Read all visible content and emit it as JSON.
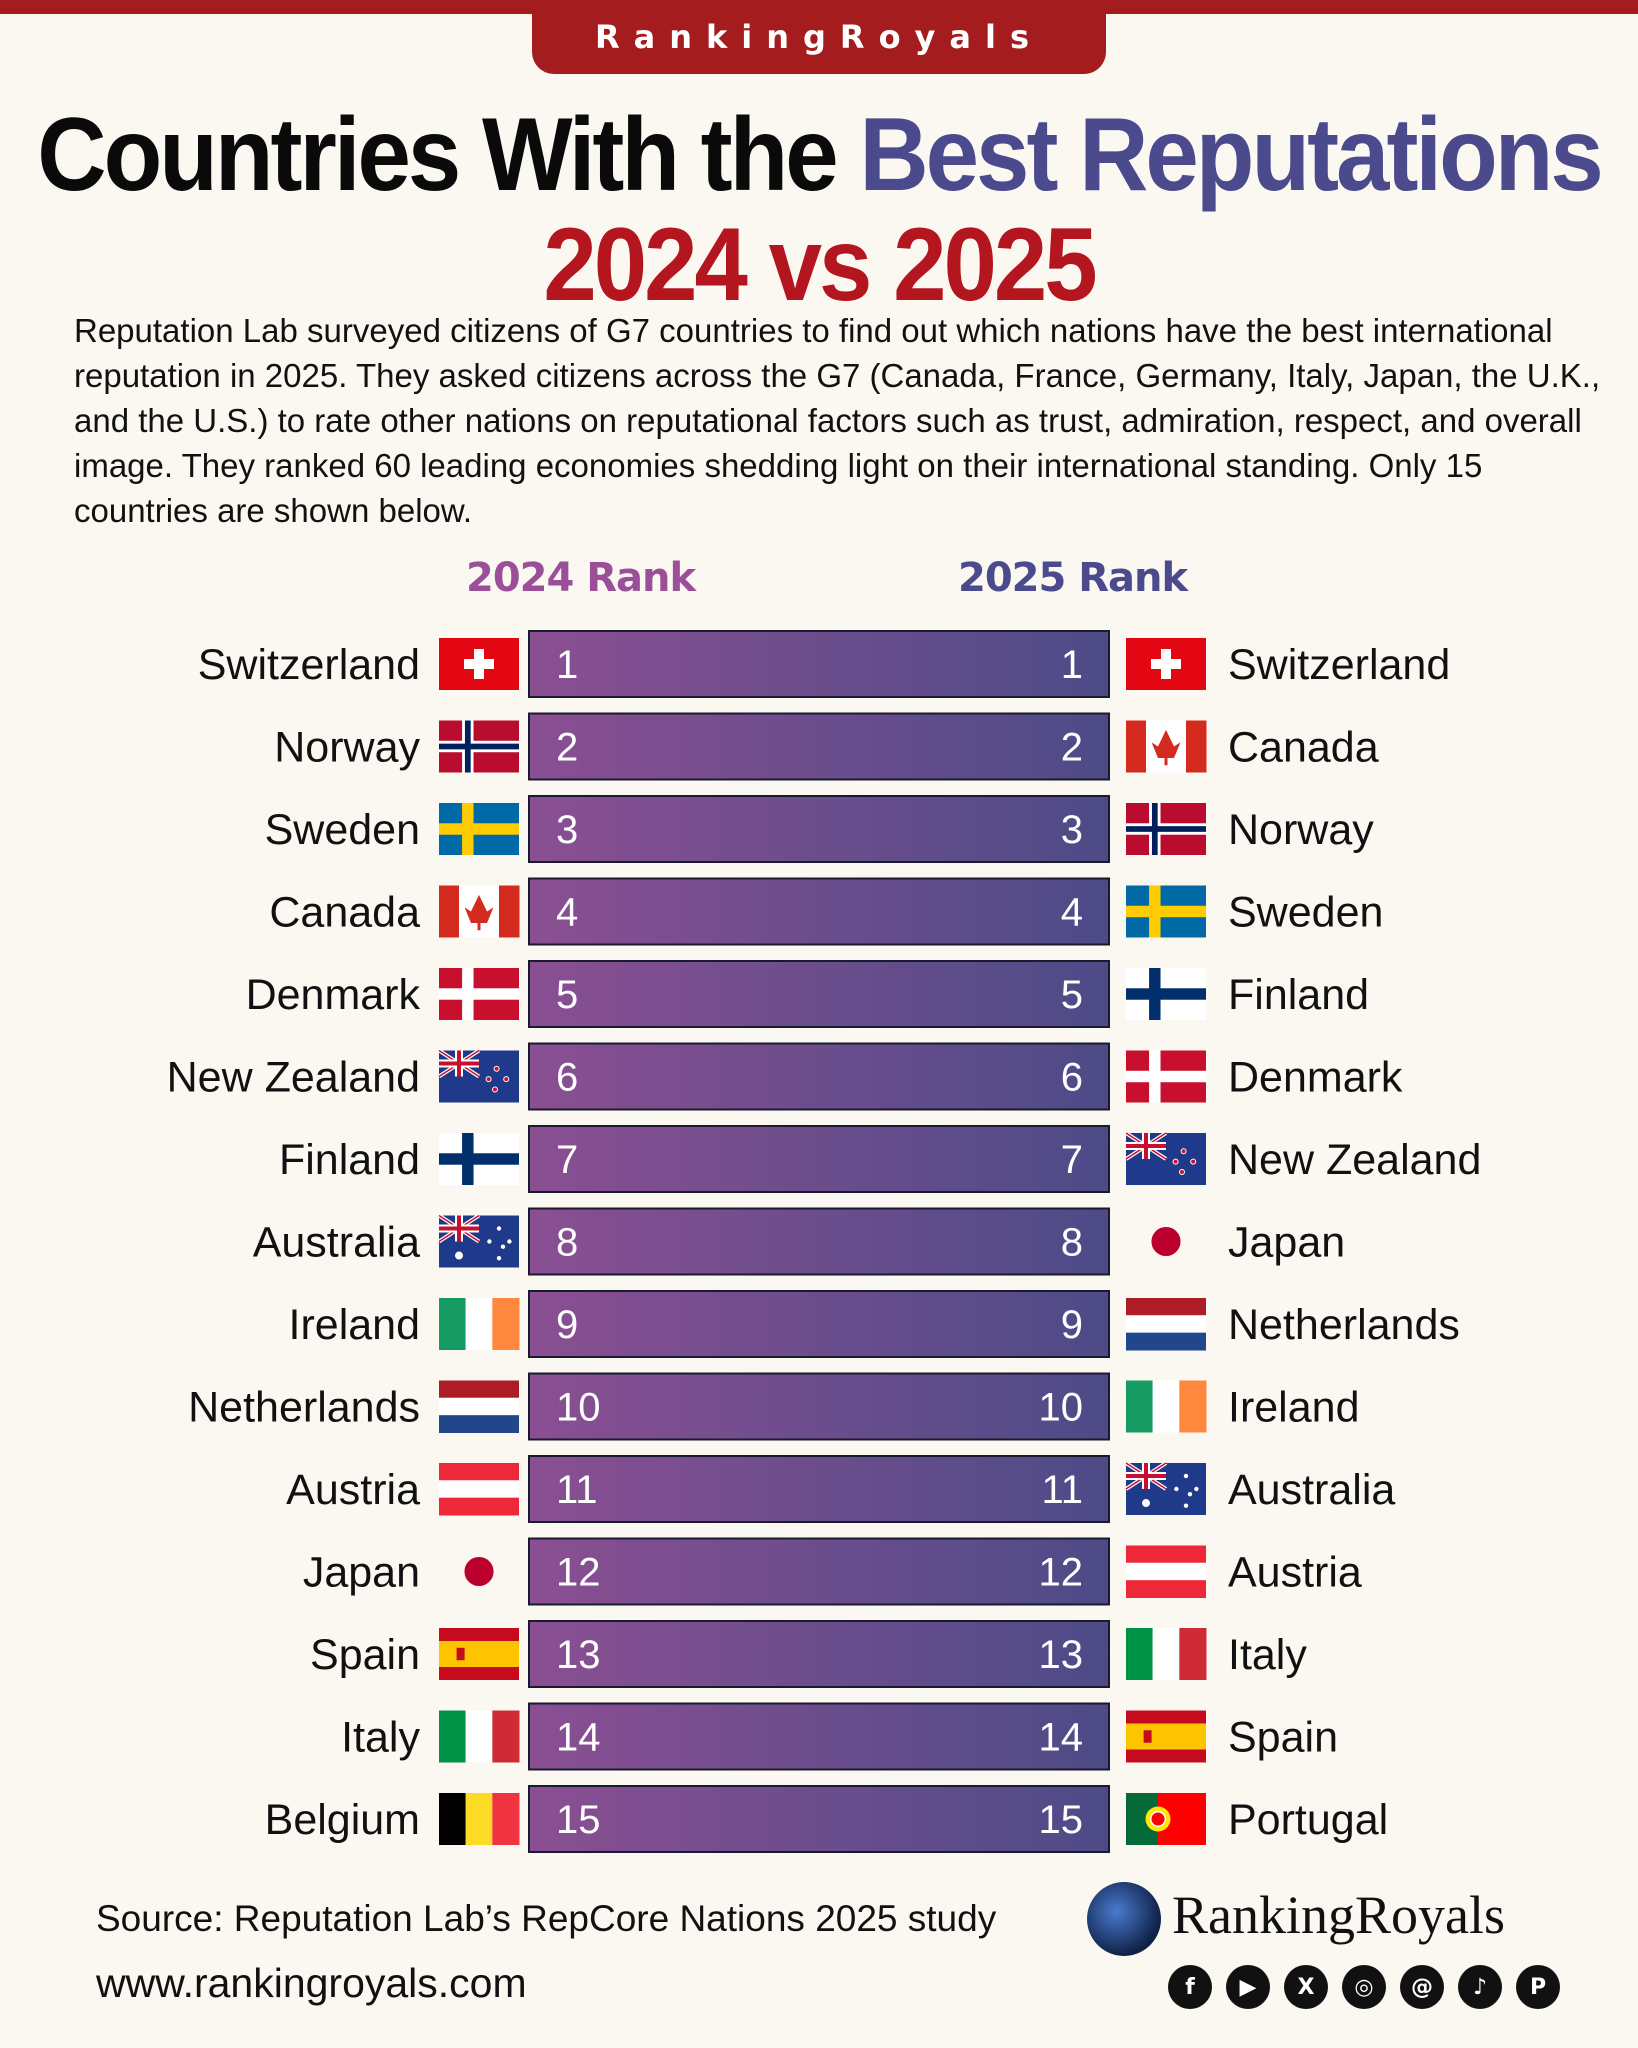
{
  "brand": "RankingRoyals",
  "title": {
    "part1": "Countries With the ",
    "part2": "Best Reputations",
    "line2": "2024 vs 2025"
  },
  "description": "Reputation Lab surveyed citizens of G7 countries to find out which nations have the best international reputation in 2025. They asked citizens across the G7 (Canada, France, Germany, Italy, Japan, the U.K., and the U.S.) to rate other nations on reputational factors such as trust, admiration, respect, and overall image. They ranked 60 leading economies shedding light on their international standing. Only 15 countries are shown below.",
  "chart_data": {
    "type": "table",
    "title": "Countries With the Best Reputations 2024 vs 2025",
    "columns": [
      "2024 Rank",
      "2025 Rank"
    ],
    "ranks": [
      1,
      2,
      3,
      4,
      5,
      6,
      7,
      8,
      9,
      10,
      11,
      12,
      13,
      14,
      15
    ],
    "rank_2024": [
      "Switzerland",
      "Norway",
      "Sweden",
      "Canada",
      "Denmark",
      "New Zealand",
      "Finland",
      "Australia",
      "Ireland",
      "Netherlands",
      "Austria",
      "Japan",
      "Spain",
      "Italy",
      "Belgium"
    ],
    "rank_2025": [
      "Switzerland",
      "Canada",
      "Norway",
      "Sweden",
      "Finland",
      "Denmark",
      "New Zealand",
      "Japan",
      "Netherlands",
      "Ireland",
      "Australia",
      "Austria",
      "Italy",
      "Spain",
      "Portugal"
    ]
  },
  "colors": {
    "bar_left": "#8a4f92",
    "bar_right": "#4d4b87",
    "heading_2024": "#9a4f98",
    "heading_2025": "#4b4a8c",
    "accent_red": "#a51c1e"
  },
  "footer": {
    "source": "Source: Reputation Lab’s RepCore Nations 2025 study",
    "url": "www.rankingroyals.com",
    "logo_text": "RankingRoyals",
    "social_icons": [
      "facebook-icon",
      "youtube-icon",
      "x-icon",
      "instagram-icon",
      "threads-icon",
      "tiktok-icon",
      "pinterest-icon"
    ]
  }
}
